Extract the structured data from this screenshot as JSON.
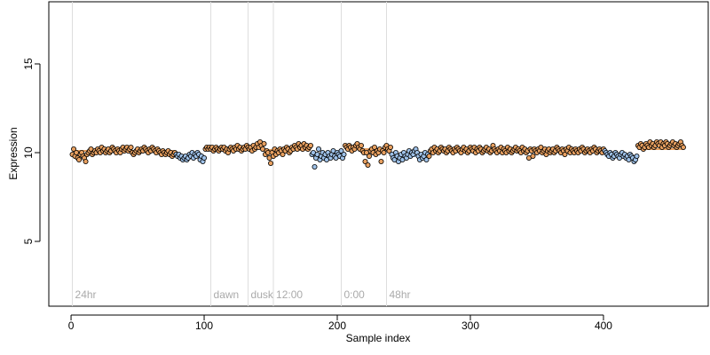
{
  "chart_data": {
    "type": "scatter",
    "xlabel": "Sample index",
    "ylabel": "Expression",
    "xlim": [
      -16.7,
      478.7
    ],
    "ylim": [
      1.35,
      18.5
    ],
    "xticks": [
      0,
      100,
      200,
      300,
      400
    ],
    "yticks": [
      5,
      10,
      15
    ],
    "annotations": [
      {
        "x": 1,
        "label": "24hr"
      },
      {
        "x": 105,
        "label": "dawn"
      },
      {
        "x": 133,
        "label": "dusk"
      },
      {
        "x": 152,
        "label": "12:00"
      },
      {
        "x": 203,
        "label": "0:00"
      },
      {
        "x": 237,
        "label": "48hr"
      }
    ],
    "segments": [
      {
        "start": 1,
        "end": 78,
        "value": 10.1,
        "color": "#e8a060"
      },
      {
        "start": 79,
        "end": 100,
        "value": 9.8,
        "color": "#9ec1e8"
      },
      {
        "start": 101,
        "end": 145,
        "value": 10.25,
        "color": "#e8a060"
      },
      {
        "start": 146,
        "end": 180,
        "value": 10.15,
        "color": "#e8a060"
      },
      {
        "start": 181,
        "end": 205,
        "value": 9.8,
        "color": "#9ec1e8"
      },
      {
        "start": 206,
        "end": 240,
        "value": 10.2,
        "color": "#e8a060"
      },
      {
        "start": 241,
        "end": 268,
        "value": 9.8,
        "color": "#9ec1e8"
      },
      {
        "start": 269,
        "end": 400,
        "value": 10.15,
        "color": "#e8a060"
      },
      {
        "start": 401,
        "end": 425,
        "value": 9.8,
        "color": "#9ec1e8"
      },
      {
        "start": 426,
        "end": 460,
        "value": 10.2,
        "color": "#e8a060"
      }
    ],
    "x": [
      1,
      2,
      3,
      4,
      5,
      6,
      7,
      8,
      9,
      10,
      11,
      12,
      13,
      14,
      15,
      16,
      17,
      18,
      19,
      20,
      21,
      22,
      23,
      24,
      25,
      26,
      27,
      28,
      29,
      30,
      31,
      32,
      33,
      34,
      35,
      36,
      37,
      38,
      39,
      40,
      41,
      42,
      43,
      44,
      45,
      46,
      47,
      48,
      49,
      50,
      51,
      52,
      53,
      54,
      55,
      56,
      57,
      58,
      59,
      60,
      61,
      62,
      63,
      64,
      65,
      66,
      67,
      68,
      69,
      70,
      71,
      72,
      73,
      74,
      75,
      76,
      77,
      78,
      79,
      80,
      81,
      82,
      83,
      84,
      85,
      86,
      87,
      88,
      89,
      90,
      91,
      92,
      93,
      94,
      95,
      96,
      97,
      98,
      99,
      100,
      101,
      102,
      103,
      104,
      105,
      106,
      107,
      108,
      109,
      110,
      111,
      112,
      113,
      114,
      115,
      116,
      117,
      118,
      119,
      120,
      121,
      122,
      123,
      124,
      125,
      126,
      127,
      128,
      129,
      130,
      131,
      132,
      133,
      134,
      135,
      136,
      137,
      138,
      139,
      140,
      141,
      142,
      143,
      144,
      145,
      146,
      147,
      148,
      149,
      150,
      151,
      152,
      153,
      154,
      155,
      156,
      157,
      158,
      159,
      160,
      161,
      162,
      163,
      164,
      165,
      166,
      167,
      168,
      169,
      170,
      171,
      172,
      173,
      174,
      175,
      176,
      177,
      178,
      179,
      180,
      181,
      182,
      183,
      184,
      185,
      186,
      187,
      188,
      189,
      190,
      191,
      192,
      193,
      194,
      195,
      196,
      197,
      198,
      199,
      200,
      201,
      202,
      203,
      204,
      205,
      206,
      207,
      208,
      209,
      210,
      211,
      212,
      213,
      214,
      215,
      216,
      217,
      218,
      219,
      220,
      221,
      222,
      223,
      224,
      225,
      226,
      227,
      228,
      229,
      230,
      231,
      232,
      233,
      234,
      235,
      236,
      237,
      238,
      239,
      240,
      241,
      242,
      243,
      244,
      245,
      246,
      247,
      248,
      249,
      250,
      251,
      252,
      253,
      254,
      255,
      256,
      257,
      258,
      259,
      260,
      261,
      262,
      263,
      264,
      265,
      266,
      267,
      268,
      269,
      270,
      271,
      272,
      273,
      274,
      275,
      276,
      277,
      278,
      279,
      280,
      281,
      282,
      283,
      284,
      285,
      286,
      287,
      288,
      289,
      290,
      291,
      292,
      293,
      294,
      295,
      296,
      297,
      298,
      299,
      300,
      301,
      302,
      303,
      304,
      305,
      306,
      307,
      308,
      309,
      310,
      311,
      312,
      313,
      314,
      315,
      316,
      317,
      318,
      319,
      320,
      321,
      322,
      323,
      324,
      325,
      326,
      327,
      328,
      329,
      330,
      331,
      332,
      333,
      334,
      335,
      336,
      337,
      338,
      339,
      340,
      341,
      342,
      343,
      344,
      345,
      346,
      347,
      348,
      349,
      350,
      351,
      352,
      353,
      354,
      355,
      356,
      357,
      358,
      359,
      360,
      361,
      362,
      363,
      364,
      365,
      366,
      367,
      368,
      369,
      370,
      371,
      372,
      373,
      374,
      375,
      376,
      377,
      378,
      379,
      380,
      381,
      382,
      383,
      384,
      385,
      386,
      387,
      388,
      389,
      390,
      391,
      392,
      393,
      394,
      395,
      396,
      397,
      398,
      399,
      400,
      401,
      402,
      403,
      404,
      405,
      406,
      407,
      408,
      409,
      410,
      411,
      412,
      413,
      414,
      415,
      416,
      417,
      418,
      419,
      420,
      421,
      422,
      423,
      424,
      425,
      426,
      427,
      428,
      429,
      430,
      431,
      432,
      433,
      434,
      435,
      436,
      437,
      438,
      439,
      440,
      441,
      442,
      443,
      444,
      445,
      446,
      447,
      448,
      449,
      450,
      451,
      452,
      453,
      454,
      455,
      456,
      457,
      458,
      459,
      460
    ],
    "values": [
      9.9,
      10.2,
      9.8,
      10.0,
      9.7,
      9.6,
      9.9,
      10.0,
      9.8,
      9.7,
      9.5,
      9.9,
      10.0,
      10.1,
      10.2,
      9.9,
      10.0,
      10.1,
      10.0,
      10.2,
      10.1,
      10.0,
      10.3,
      10.1,
      10.2,
      10.0,
      10.1,
      10.2,
      10.0,
      10.1,
      10.3,
      10.2,
      10.1,
      10.0,
      10.2,
      10.1,
      10.0,
      10.2,
      10.3,
      10.1,
      10.2,
      10.3,
      10.1,
      10.2,
      10.3,
      10.0,
      9.9,
      10.0,
      10.1,
      10.2,
      10.0,
      10.1,
      10.2,
      10.1,
      10.3,
      10.2,
      10.1,
      10.0,
      10.2,
      10.1,
      10.3,
      10.2,
      10.1,
      10.0,
      10.2,
      10.1,
      10.0,
      9.9,
      10.1,
      10.0,
      9.9,
      10.0,
      10.1,
      9.9,
      10.0,
      9.8,
      9.9,
      10.0,
      9.9,
      9.8,
      9.9,
      9.7,
      9.8,
      9.6,
      9.7,
      9.8,
      9.6,
      9.7,
      9.9,
      9.8,
      10.0,
      9.7,
      9.9,
      9.8,
      10.0,
      9.9,
      9.6,
      9.8,
      9.5,
      9.7,
      10.2,
      10.3,
      10.2,
      10.3,
      10.2,
      10.3,
      10.1,
      10.2,
      10.3,
      10.2,
      10.1,
      10.2,
      10.3,
      10.2,
      10.3,
      10.1,
      10.2,
      10.0,
      10.2,
      10.3,
      10.2,
      10.1,
      10.3,
      10.2,
      10.4,
      10.2,
      10.3,
      10.1,
      10.2,
      10.3,
      10.2,
      10.4,
      10.3,
      10.2,
      10.3,
      10.1,
      10.4,
      10.2,
      10.3,
      10.5,
      10.3,
      10.6,
      10.4,
      10.2,
      10.5,
      9.9,
      10.1,
      10.0,
      9.7,
      9.4,
      10.0,
      9.8,
      10.2,
      9.9,
      10.1,
      10.0,
      10.2,
      10.1,
      9.9,
      10.2,
      10.1,
      10.3,
      10.2,
      10.0,
      10.1,
      10.3,
      10.2,
      10.4,
      10.3,
      10.2,
      10.5,
      10.3,
      10.4,
      10.2,
      10.5,
      10.3,
      10.4,
      10.2,
      10.3,
      10.4,
      9.9,
      10.0,
      9.2,
      9.7,
      9.9,
      10.2,
      9.6,
      9.8,
      10.0,
      9.7,
      9.9,
      9.6,
      10.0,
      9.8,
      9.7,
      9.9,
      10.1,
      9.8,
      9.7,
      10.0,
      9.9,
      9.8,
      10.1,
      9.7,
      9.9,
      10.4,
      10.3,
      10.2,
      10.4,
      10.3,
      10.1,
      10.3,
      10.2,
      10.4,
      10.5,
      10.3,
      10.2,
      10.4,
      10.1,
      10.0,
      9.5,
      10.0,
      9.3,
      9.8,
      10.1,
      10.2,
      10.0,
      10.3,
      9.9,
      10.1,
      10.0,
      10.2,
      9.5,
      10.1,
      10.0,
      10.3,
      10.4,
      10.2,
      10.1,
      10.3,
      9.9,
      9.7,
      9.6,
      10.0,
      9.8,
      9.5,
      9.7,
      9.9,
      9.6,
      10.0,
      9.8,
      9.7,
      9.9,
      10.1,
      9.8,
      10.0,
      9.9,
      10.1,
      10.2,
      10.0,
      9.8,
      9.6,
      9.9,
      9.7,
      9.8,
      10.0,
      9.6,
      9.9,
      9.8,
      10.1,
      10.2,
      10.0,
      10.3,
      10.1,
      10.2,
      10.0,
      10.1,
      10.3,
      10.2,
      10.1,
      10.2,
      10.0,
      10.1,
      10.3,
      10.2,
      10.1,
      10.0,
      10.2,
      10.1,
      10.3,
      10.2,
      10.1,
      10.0,
      10.2,
      10.3,
      10.1,
      10.2,
      10.0,
      10.1,
      10.3,
      10.2,
      10.1,
      10.3,
      10.0,
      10.2,
      10.1,
      10.3,
      10.2,
      10.0,
      10.1,
      10.2,
      10.3,
      10.1,
      10.2,
      10.0,
      10.1,
      10.4,
      10.2,
      10.1,
      10.0,
      10.2,
      10.1,
      10.3,
      10.0,
      10.2,
      10.1,
      10.0,
      10.3,
      10.1,
      10.2,
      10.0,
      10.1,
      10.2,
      10.3,
      10.1,
      10.2,
      10.1,
      10.0,
      10.3,
      10.1,
      10.2,
      10.0,
      10.1,
      9.7,
      10.2,
      10.1,
      9.8,
      10.2,
      10.1,
      10.0,
      10.2,
      10.1,
      10.3,
      10.0,
      10.1,
      10.2,
      9.9,
      10.1,
      10.2,
      10.0,
      10.1,
      10.2,
      10.0,
      10.1,
      10.3,
      10.2,
      10.1,
      10.0,
      10.2,
      10.1,
      9.9,
      10.2,
      10.1,
      10.3,
      10.0,
      10.2,
      10.1,
      10.0,
      10.2,
      10.1,
      10.0,
      10.2,
      10.1,
      10.3,
      10.2,
      10.0,
      10.1,
      10.2,
      10.1,
      10.0,
      10.2,
      10.1,
      10.3,
      10.2,
      10.0,
      10.1,
      10.2,
      10.1,
      10.0,
      10.2,
      10.1,
      10.0,
      9.9,
      9.8,
      10.0,
      9.9,
      9.7,
      9.8,
      10.0,
      9.9,
      9.8,
      9.7,
      9.9,
      10.0,
      9.8,
      9.9,
      9.7,
      9.8,
      9.6,
      9.9,
      9.8,
      9.7,
      9.5,
      9.6,
      9.8,
      10.4,
      10.3,
      10.5,
      10.4,
      10.2,
      10.3,
      10.5,
      10.4,
      10.3,
      10.6,
      10.4,
      10.5,
      10.3,
      10.4,
      10.6,
      10.5,
      10.4,
      10.6,
      10.3,
      10.5,
      10.4,
      10.6,
      10.5,
      10.3,
      10.4,
      10.5,
      10.6,
      10.4,
      10.5,
      10.3,
      10.4,
      10.5,
      10.6,
      10.4,
      10.3
    ]
  }
}
